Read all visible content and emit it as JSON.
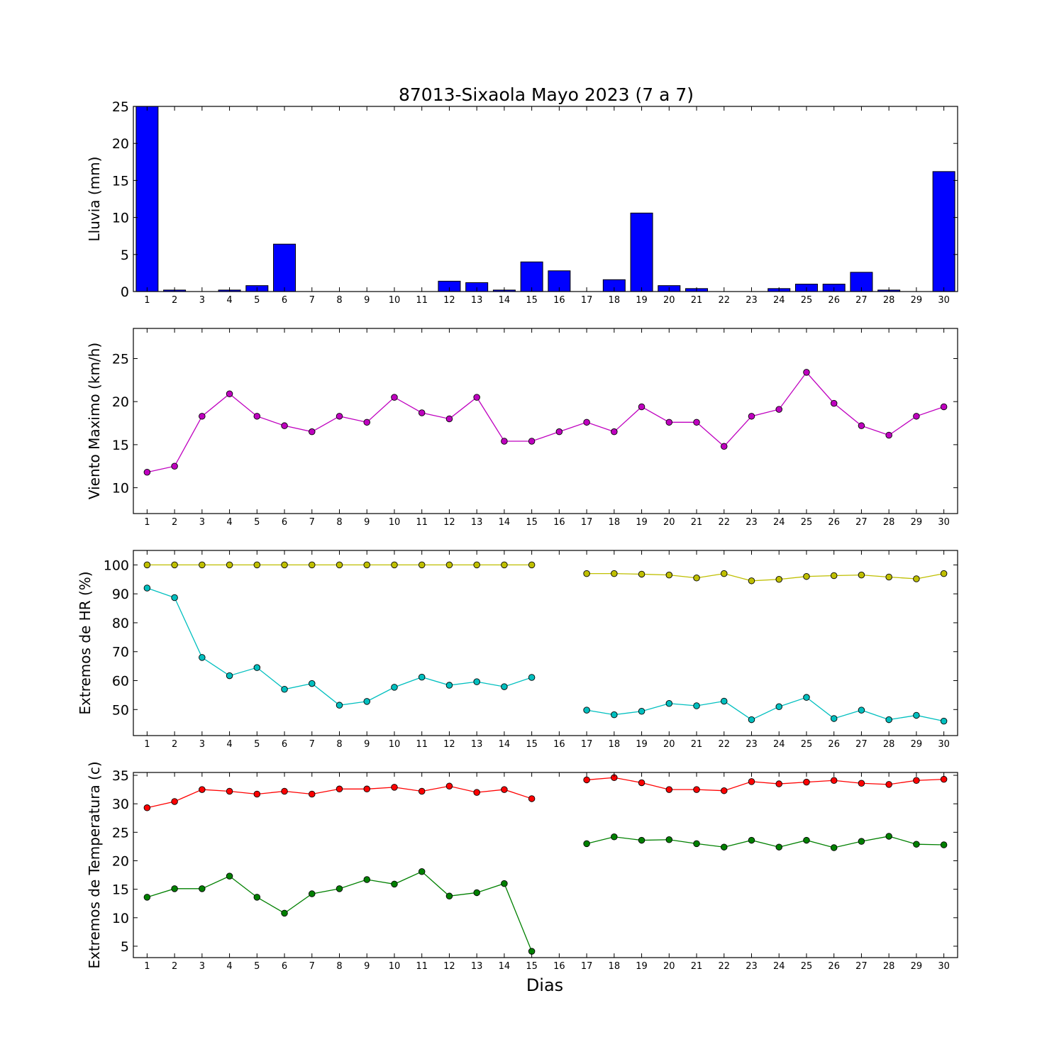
{
  "figure": {
    "title": "87013-Sixaola Mayo 2023  (7 a 7)",
    "xlabel": "Dias"
  },
  "chart_data": [
    {
      "type": "bar",
      "title": "87013-Sixaola Mayo 2023  (7 a 7)",
      "ylabel": "Lluvia (mm)",
      "ylim": [
        0,
        25
      ],
      "yticks": [
        0,
        5,
        10,
        15,
        20,
        25
      ],
      "xlim": [
        0.5,
        30.5
      ],
      "categories": [
        1,
        2,
        3,
        4,
        5,
        6,
        7,
        8,
        9,
        10,
        11,
        12,
        13,
        14,
        15,
        16,
        17,
        18,
        19,
        20,
        21,
        22,
        23,
        24,
        25,
        26,
        27,
        28,
        29,
        30
      ],
      "values": [
        25.0,
        0.2,
        0.0,
        0.2,
        0.8,
        6.4,
        0.0,
        0.0,
        0.0,
        0.0,
        0.0,
        1.4,
        1.2,
        0.2,
        4.0,
        2.8,
        0.0,
        1.6,
        10.6,
        0.8,
        0.4,
        0.0,
        0.0,
        0.4,
        1.0,
        1.0,
        2.6,
        0.2,
        0.0,
        16.2
      ],
      "colors": {
        "bar": "#0000ff"
      },
      "grid": false
    },
    {
      "type": "line",
      "ylabel": "Viento Maximo (km/h)",
      "ylim": [
        7,
        28.5
      ],
      "yticks": [
        10,
        15,
        20,
        25
      ],
      "xlim": [
        0.5,
        30.5
      ],
      "x": [
        1,
        2,
        3,
        4,
        5,
        6,
        7,
        8,
        9,
        10,
        11,
        12,
        13,
        14,
        15,
        16,
        17,
        18,
        19,
        20,
        21,
        22,
        23,
        24,
        25,
        26,
        27,
        28,
        29,
        30
      ],
      "series": [
        {
          "color": "#bf00bf",
          "values": [
            11.8,
            12.5,
            18.3,
            20.9,
            18.3,
            17.2,
            16.5,
            18.3,
            17.6,
            20.5,
            18.7,
            18.0,
            20.5,
            15.4,
            15.4,
            16.5,
            17.6,
            16.5,
            19.4,
            17.6,
            17.6,
            14.8,
            18.3,
            19.1,
            23.4,
            19.8,
            17.2,
            16.1,
            18.3,
            19.4
          ]
        }
      ],
      "grid": false
    },
    {
      "type": "line",
      "ylabel": "Extremos de HR (%)",
      "ylim": [
        41,
        105
      ],
      "yticks": [
        50,
        60,
        70,
        80,
        90,
        100
      ],
      "xlim": [
        0.5,
        30.5
      ],
      "x": [
        1,
        2,
        3,
        4,
        5,
        6,
        7,
        8,
        9,
        10,
        11,
        12,
        13,
        14,
        15,
        16,
        17,
        18,
        19,
        20,
        21,
        22,
        23,
        24,
        25,
        26,
        27,
        28,
        29,
        30
      ],
      "series": [
        {
          "color": "#bfbf00",
          "values": [
            100,
            100,
            100,
            100,
            100,
            100,
            100,
            100,
            100,
            100,
            100,
            100,
            100,
            100,
            100,
            null,
            97,
            97,
            96.8,
            96.5,
            95.5,
            97,
            94.5,
            95,
            96,
            96.3,
            96.5,
            95.8,
            95.2,
            97
          ]
        },
        {
          "color": "#00bfbf",
          "values": [
            92,
            88.7,
            68,
            61.7,
            64.5,
            57,
            59,
            51.5,
            52.8,
            57.7,
            61.2,
            58.4,
            59.6,
            57.9,
            61.1,
            null,
            49.8,
            48.2,
            49.4,
            52.1,
            51.3,
            52.9,
            46.5,
            51,
            54.2,
            46.9,
            49.8,
            46.5,
            48,
            46
          ]
        }
      ],
      "grid": false
    },
    {
      "type": "line",
      "ylabel": "Extremos de Temperatura (c)",
      "ylim": [
        3,
        35.5
      ],
      "yticks": [
        5,
        10,
        15,
        20,
        25,
        30,
        35
      ],
      "xlim": [
        0.5,
        30.5
      ],
      "x": [
        1,
        2,
        3,
        4,
        5,
        6,
        7,
        8,
        9,
        10,
        11,
        12,
        13,
        14,
        15,
        16,
        17,
        18,
        19,
        20,
        21,
        22,
        23,
        24,
        25,
        26,
        27,
        28,
        29,
        30
      ],
      "series": [
        {
          "color": "#ff0000",
          "values": [
            29.3,
            30.4,
            32.5,
            32.2,
            31.7,
            32.2,
            31.7,
            32.6,
            32.6,
            32.9,
            32.2,
            33.1,
            32.0,
            32.5,
            30.9,
            null,
            34.2,
            34.6,
            33.7,
            32.5,
            32.5,
            32.3,
            33.9,
            33.5,
            33.8,
            34.1,
            33.6,
            33.4,
            34.1,
            34.3
          ]
        },
        {
          "color": "#008000",
          "values": [
            13.6,
            15.1,
            15.1,
            17.3,
            13.6,
            10.8,
            14.2,
            15.1,
            16.7,
            15.9,
            18.1,
            13.8,
            14.4,
            16.0,
            4.1,
            null,
            23.0,
            24.2,
            23.6,
            23.7,
            23.0,
            22.4,
            23.6,
            22.4,
            23.6,
            22.3,
            23.4,
            24.3,
            22.9,
            22.8
          ]
        }
      ],
      "grid": false
    }
  ]
}
